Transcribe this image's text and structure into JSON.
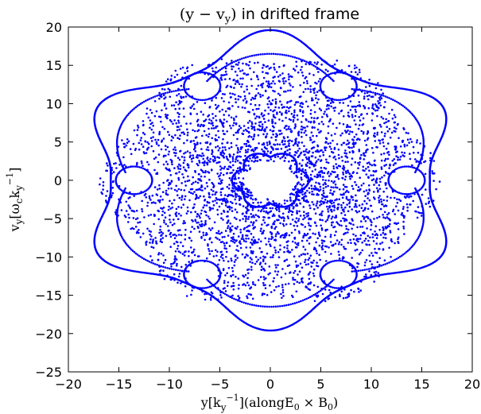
{
  "chart_data": {
    "type": "scatter",
    "title_math": "(y − v",
    "title_math_sub": "y",
    "title_math_close": ")",
    "title_text": " in drifted frame",
    "xlabel_prefix": "y[k",
    "xlabel_sub": "y",
    "xlabel_sup": "−1",
    "xlabel_suffix": "](alongE",
    "xlabel_e_sub": "0",
    "xlabel_cross": " × B",
    "xlabel_b_sub": "0",
    "xlabel_close": ")",
    "ylabel_prefix": "v",
    "ylabel_sub1": "y",
    "ylabel_mid": "[ω",
    "ylabel_sub2": "c",
    "ylabel_k": "k",
    "ylabel_sub3": "y",
    "ylabel_sup": "−1",
    "ylabel_close": "]",
    "xlim": [
      -20,
      20
    ],
    "ylim": [
      -25,
      20
    ],
    "xticks": [
      -20,
      -15,
      -10,
      -5,
      0,
      5,
      10,
      15,
      20
    ],
    "yticks": [
      -25,
      -20,
      -15,
      -10,
      -5,
      0,
      5,
      10,
      15,
      20
    ],
    "xtick_labels": [
      "−20",
      "−15",
      "−10",
      "−5",
      "0",
      "5",
      "10",
      "15",
      "20"
    ],
    "ytick_labels": [
      "−25",
      "−20",
      "−15",
      "−10",
      "−5",
      "0",
      "5",
      "10",
      "15",
      "20"
    ],
    "marker_color": "#0000ff",
    "grid": false,
    "series": [
      {
        "description": "Poincaré-like section: dense chaotic annulus between radius ~2.5 and ~16 with six outer lobes extending to |y|≈18–19, |v_y|≈19–20"
      }
    ],
    "structure": {
      "inner_hole_radius": 2.5,
      "annulus_outer_radius": 16,
      "outer_lobe_angles_deg": [
        90,
        30,
        -30,
        -90,
        -150,
        150
      ],
      "outer_lobe_reach": 19.5,
      "island_angles_deg": [
        0,
        60,
        120,
        180,
        240,
        300
      ],
      "island_radius": 13.5
    }
  }
}
